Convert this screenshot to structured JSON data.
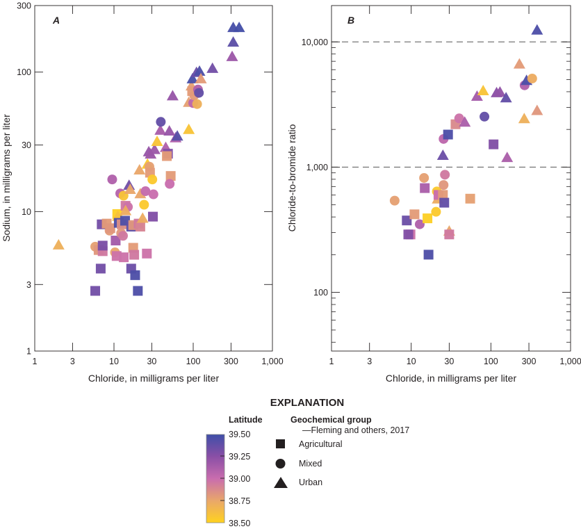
{
  "chart_data": [
    {
      "panel": "A",
      "type": "scatter",
      "title": "A",
      "xlabel": "Chloride, in milligrams per liter",
      "ylabel": "Sodium, in milligrams per liter",
      "xscale": "log",
      "yscale": "log",
      "xlim": [
        1,
        1000
      ],
      "ylim": [
        1,
        300
      ],
      "xticks": [
        1,
        3,
        10,
        30,
        100,
        300,
        1000
      ],
      "xtick_labels": [
        "1",
        "3",
        "10",
        "30",
        "100",
        "300",
        "1,000"
      ],
      "yticks": [
        1,
        3,
        10,
        30,
        100,
        300
      ],
      "ytick_labels": [
        "1",
        "3",
        "10",
        "30",
        "100",
        "300"
      ],
      "grid": false,
      "points": [
        {
          "x": 2.0,
          "y": 5.8,
          "group": "Urban",
          "lat": 38.7
        },
        {
          "x": 5.8,
          "y": 5.6,
          "group": "Mixed",
          "lat": 38.78
        },
        {
          "x": 6.4,
          "y": 5.3,
          "group": "Agricultural",
          "lat": 38.82
        },
        {
          "x": 7.2,
          "y": 5.2,
          "group": "Agricultural",
          "lat": 38.95
        },
        {
          "x": 7.2,
          "y": 5.7,
          "group": "Agricultural",
          "lat": 39.3
        },
        {
          "x": 6.8,
          "y": 3.9,
          "group": "Agricultural",
          "lat": 39.33
        },
        {
          "x": 5.8,
          "y": 2.7,
          "group": "Agricultural",
          "lat": 39.33
        },
        {
          "x": 7.0,
          "y": 8.1,
          "group": "Agricultural",
          "lat": 39.32
        },
        {
          "x": 8.1,
          "y": 8.2,
          "group": "Agricultural",
          "lat": 38.8
        },
        {
          "x": 8.8,
          "y": 7.3,
          "group": "Mixed",
          "lat": 38.8
        },
        {
          "x": 9.0,
          "y": 7.6,
          "group": "Agricultural",
          "lat": 38.82
        },
        {
          "x": 10.3,
          "y": 5.1,
          "group": "Mixed",
          "lat": 38.76
        },
        {
          "x": 10.5,
          "y": 6.2,
          "group": "Agricultural",
          "lat": 39.15
        },
        {
          "x": 10.8,
          "y": 4.8,
          "group": "Agricultural",
          "lat": 38.98
        },
        {
          "x": 11.0,
          "y": 9.6,
          "group": "Agricultural",
          "lat": 38.52
        },
        {
          "x": 11.2,
          "y": 9.3,
          "group": "Urban",
          "lat": 38.6
        },
        {
          "x": 11.5,
          "y": 8.3,
          "group": "Agricultural",
          "lat": 39.45
        },
        {
          "x": 12.5,
          "y": 8.1,
          "group": "Agricultural",
          "lat": 38.85
        },
        {
          "x": 12.3,
          "y": 7.0,
          "group": "Mixed",
          "lat": 38.82
        },
        {
          "x": 13.0,
          "y": 6.7,
          "group": "Mixed",
          "lat": 38.95
        },
        {
          "x": 13.3,
          "y": 4.7,
          "group": "Agricultural",
          "lat": 38.98
        },
        {
          "x": 13.8,
          "y": 8.6,
          "group": "Agricultural",
          "lat": 39.45
        },
        {
          "x": 14.0,
          "y": 11.0,
          "group": "Agricultural",
          "lat": 38.95
        },
        {
          "x": 15.0,
          "y": 10.8,
          "group": "Mixed",
          "lat": 38.98
        },
        {
          "x": 14.0,
          "y": 10.2,
          "group": "Urban",
          "lat": 38.72
        },
        {
          "x": 12.0,
          "y": 13.5,
          "group": "Mixed",
          "lat": 39.08
        },
        {
          "x": 13.2,
          "y": 13.0,
          "group": "Mixed",
          "lat": 38.58
        },
        {
          "x": 9.5,
          "y": 17.0,
          "group": "Mixed",
          "lat": 39.1
        },
        {
          "x": 15.5,
          "y": 15.5,
          "group": "Urban",
          "lat": 39.33
        },
        {
          "x": 16.0,
          "y": 14.5,
          "group": "Urban",
          "lat": 38.75
        },
        {
          "x": 16.5,
          "y": 7.8,
          "group": "Agricultural",
          "lat": 39.4
        },
        {
          "x": 17.5,
          "y": 8.0,
          "group": "Agricultural",
          "lat": 38.82
        },
        {
          "x": 17.5,
          "y": 5.5,
          "group": "Agricultural",
          "lat": 38.8
        },
        {
          "x": 18.0,
          "y": 4.9,
          "group": "Agricultural",
          "lat": 38.95
        },
        {
          "x": 16.5,
          "y": 3.9,
          "group": "Agricultural",
          "lat": 39.35
        },
        {
          "x": 18.5,
          "y": 3.5,
          "group": "Agricultural",
          "lat": 39.45
        },
        {
          "x": 20.0,
          "y": 2.7,
          "group": "Agricultural",
          "lat": 39.45
        },
        {
          "x": 20.5,
          "y": 8.2,
          "group": "Agricultural",
          "lat": 38.95
        },
        {
          "x": 21.5,
          "y": 7.8,
          "group": "Agricultural",
          "lat": 38.9
        },
        {
          "x": 21.5,
          "y": 13.5,
          "group": "Urban",
          "lat": 38.75
        },
        {
          "x": 23.0,
          "y": 9.0,
          "group": "Urban",
          "lat": 38.72
        },
        {
          "x": 24.0,
          "y": 11.2,
          "group": "Mixed",
          "lat": 38.55
        },
        {
          "x": 25.0,
          "y": 14.0,
          "group": "Mixed",
          "lat": 39.02
        },
        {
          "x": 26.0,
          "y": 5.0,
          "group": "Agricultural",
          "lat": 38.98
        },
        {
          "x": 21.0,
          "y": 20.0,
          "group": "Urban",
          "lat": 38.75
        },
        {
          "x": 26.5,
          "y": 22.0,
          "group": "Urban",
          "lat": 38.55
        },
        {
          "x": 28.0,
          "y": 21.0,
          "group": "Mixed",
          "lat": 38.78
        },
        {
          "x": 28.5,
          "y": 19.0,
          "group": "Agricultural",
          "lat": 38.8
        },
        {
          "x": 30.5,
          "y": 17.0,
          "group": "Mixed",
          "lat": 38.55
        },
        {
          "x": 31.5,
          "y": 13.3,
          "group": "Mixed",
          "lat": 39.0
        },
        {
          "x": 31.0,
          "y": 9.2,
          "group": "Agricultural",
          "lat": 39.28
        },
        {
          "x": 27.5,
          "y": 27.0,
          "group": "Urban",
          "lat": 39.2
        },
        {
          "x": 29.0,
          "y": 26.0,
          "group": "Urban",
          "lat": 39.18
        },
        {
          "x": 32.5,
          "y": 28.0,
          "group": "Urban",
          "lat": 39.18
        },
        {
          "x": 35.0,
          "y": 32.0,
          "group": "Urban",
          "lat": 38.58
        },
        {
          "x": 38.5,
          "y": 38.5,
          "group": "Urban",
          "lat": 39.13
        },
        {
          "x": 39.0,
          "y": 44.0,
          "group": "Mixed",
          "lat": 39.38
        },
        {
          "x": 45.0,
          "y": 29.0,
          "group": "Urban",
          "lat": 39.1
        },
        {
          "x": 48.0,
          "y": 26.0,
          "group": "Agricultural",
          "lat": 39.28
        },
        {
          "x": 46.5,
          "y": 25.0,
          "group": "Agricultural",
          "lat": 38.8
        },
        {
          "x": 50.0,
          "y": 38.0,
          "group": "Urban",
          "lat": 39.2
        },
        {
          "x": 52.0,
          "y": 18.0,
          "group": "Agricultural",
          "lat": 38.8
        },
        {
          "x": 50.5,
          "y": 15.8,
          "group": "Mixed",
          "lat": 39.0
        },
        {
          "x": 55.0,
          "y": 68.0,
          "group": "Urban",
          "lat": 39.2
        },
        {
          "x": 60.0,
          "y": 34.0,
          "group": "Urban",
          "lat": 39.1
        },
        {
          "x": 63.0,
          "y": 35.0,
          "group": "Urban",
          "lat": 39.42
        },
        {
          "x": 88.0,
          "y": 39.0,
          "group": "Urban",
          "lat": 38.58
        },
        {
          "x": 88.0,
          "y": 61.0,
          "group": "Urban",
          "lat": 38.78
        },
        {
          "x": 95.0,
          "y": 80.0,
          "group": "Urban",
          "lat": 38.78
        },
        {
          "x": 97.0,
          "y": 73.0,
          "group": "Agricultural",
          "lat": 38.8
        },
        {
          "x": 100.0,
          "y": 60.0,
          "group": "Mixed",
          "lat": 39.05
        },
        {
          "x": 103.0,
          "y": 68.0,
          "group": "Mixed",
          "lat": 38.8
        },
        {
          "x": 112.0,
          "y": 59.0,
          "group": "Mixed",
          "lat": 38.7
        },
        {
          "x": 115.0,
          "y": 75.0,
          "group": "Mixed",
          "lat": 39.1
        },
        {
          "x": 118.0,
          "y": 71.0,
          "group": "Mixed",
          "lat": 39.38
        },
        {
          "x": 98.0,
          "y": 90.0,
          "group": "Urban",
          "lat": 39.47
        },
        {
          "x": 110.0,
          "y": 100.0,
          "group": "Urban",
          "lat": 39.35
        },
        {
          "x": 120.0,
          "y": 102.0,
          "group": "Urban",
          "lat": 39.45
        },
        {
          "x": 125.0,
          "y": 90.0,
          "group": "Urban",
          "lat": 38.8
        },
        {
          "x": 175.0,
          "y": 107.0,
          "group": "Urban",
          "lat": 39.33
        },
        {
          "x": 310.0,
          "y": 130.0,
          "group": "Urban",
          "lat": 39.18
        },
        {
          "x": 320.0,
          "y": 165.0,
          "group": "Urban",
          "lat": 39.4
        },
        {
          "x": 320.0,
          "y": 210.0,
          "group": "Urban",
          "lat": 39.47
        },
        {
          "x": 380.0,
          "y": 210.0,
          "group": "Urban",
          "lat": 39.48
        }
      ]
    },
    {
      "panel": "B",
      "type": "scatter",
      "title": "B",
      "xlabel": "Chloride, in milligrams per liter",
      "ylabel": "Chloride-to-bromide ratio",
      "xscale": "log",
      "yscale": "log",
      "xlim": [
        1,
        1000
      ],
      "ylim": [
        34,
        19500
      ],
      "xticks": [
        1,
        3,
        10,
        30,
        100,
        300,
        1000
      ],
      "xtick_labels": [
        "1",
        "3",
        "10",
        "30",
        "100",
        "300",
        "1,000"
      ],
      "yticks": [
        100,
        1000,
        10000
      ],
      "ytick_labels": [
        "100",
        "1,000",
        "10,000"
      ],
      "reference_lines": [
        1000,
        10000
      ],
      "grid": false,
      "points": [
        {
          "x": 6.2,
          "y": 540,
          "group": "Mixed",
          "lat": 38.78
        },
        {
          "x": 8.8,
          "y": 375,
          "group": "Agricultural",
          "lat": 39.35
        },
        {
          "x": 9.8,
          "y": 290,
          "group": "Agricultural",
          "lat": 38.98
        },
        {
          "x": 9.2,
          "y": 290,
          "group": "Agricultural",
          "lat": 39.28
        },
        {
          "x": 11.0,
          "y": 420,
          "group": "Agricultural",
          "lat": 38.8
        },
        {
          "x": 12.8,
          "y": 350,
          "group": "Mixed",
          "lat": 39.1
        },
        {
          "x": 14.5,
          "y": 820,
          "group": "Mixed",
          "lat": 38.78
        },
        {
          "x": 14.8,
          "y": 680,
          "group": "Agricultural",
          "lat": 39.12
        },
        {
          "x": 16.0,
          "y": 390,
          "group": "Agricultural",
          "lat": 38.52
        },
        {
          "x": 16.5,
          "y": 200,
          "group": "Agricultural",
          "lat": 39.45
        },
        {
          "x": 20.5,
          "y": 440,
          "group": "Mixed",
          "lat": 38.55
        },
        {
          "x": 21.0,
          "y": 640,
          "group": "Mixed",
          "lat": 38.55
        },
        {
          "x": 21.5,
          "y": 560,
          "group": "Urban",
          "lat": 38.72
        },
        {
          "x": 22.0,
          "y": 600,
          "group": "Agricultural",
          "lat": 39.0
        },
        {
          "x": 25.0,
          "y": 600,
          "group": "Agricultural",
          "lat": 38.8
        },
        {
          "x": 25.5,
          "y": 720,
          "group": "Mixed",
          "lat": 38.82
        },
        {
          "x": 26.5,
          "y": 870,
          "group": "Mixed",
          "lat": 38.95
        },
        {
          "x": 26.0,
          "y": 520,
          "group": "Agricultural",
          "lat": 39.38
        },
        {
          "x": 30.0,
          "y": 310,
          "group": "Urban",
          "lat": 38.75
        },
        {
          "x": 30.0,
          "y": 290,
          "group": "Agricultural",
          "lat": 38.95
        },
        {
          "x": 55.0,
          "y": 560,
          "group": "Agricultural",
          "lat": 38.78
        },
        {
          "x": 25.0,
          "y": 1250,
          "group": "Urban",
          "lat": 39.35
        },
        {
          "x": 25.5,
          "y": 1680,
          "group": "Mixed",
          "lat": 39.05
        },
        {
          "x": 29.0,
          "y": 1820,
          "group": "Agricultural",
          "lat": 39.45
        },
        {
          "x": 36.0,
          "y": 2200,
          "group": "Agricultural",
          "lat": 38.88
        },
        {
          "x": 40.0,
          "y": 2450,
          "group": "Mixed",
          "lat": 38.98
        },
        {
          "x": 47.0,
          "y": 2300,
          "group": "Urban",
          "lat": 39.12
        },
        {
          "x": 83.0,
          "y": 2530,
          "group": "Mixed",
          "lat": 39.38
        },
        {
          "x": 108.0,
          "y": 1520,
          "group": "Agricultural",
          "lat": 39.28
        },
        {
          "x": 160.0,
          "y": 1200,
          "group": "Urban",
          "lat": 39.12
        },
        {
          "x": 67.0,
          "y": 3700,
          "group": "Urban",
          "lat": 39.15
        },
        {
          "x": 80.0,
          "y": 4100,
          "group": "Urban",
          "lat": 38.58
        },
        {
          "x": 118.0,
          "y": 3950,
          "group": "Urban",
          "lat": 39.25
        },
        {
          "x": 130.0,
          "y": 4000,
          "group": "Urban",
          "lat": 39.22
        },
        {
          "x": 155.0,
          "y": 3600,
          "group": "Urban",
          "lat": 39.38
        },
        {
          "x": 228.0,
          "y": 6700,
          "group": "Urban",
          "lat": 38.8
        },
        {
          "x": 265.0,
          "y": 4500,
          "group": "Mixed",
          "lat": 39.1
        },
        {
          "x": 280.0,
          "y": 4950,
          "group": "Urban",
          "lat": 39.45
        },
        {
          "x": 330.0,
          "y": 5100,
          "group": "Mixed",
          "lat": 38.72
        },
        {
          "x": 262.0,
          "y": 2450,
          "group": "Urban",
          "lat": 38.7
        },
        {
          "x": 380.0,
          "y": 2850,
          "group": "Urban",
          "lat": 38.82
        },
        {
          "x": 380.0,
          "y": 12500,
          "group": "Urban",
          "lat": 39.45
        }
      ]
    }
  ],
  "explanation": {
    "title": "EXPLANATION",
    "colorbar": {
      "title": "Latitude",
      "min": 38.5,
      "max": 39.5,
      "tick_labels": [
        "39.50",
        "39.25",
        "39.00",
        "38.75",
        "38.50"
      ],
      "colors": [
        "#3F4FA8",
        "#8A4FA6",
        "#C96DAE",
        "#E9A76A",
        "#FFD21F"
      ]
    },
    "groups": {
      "title": "Geochemical group",
      "subtitle": "—Fleming and others, 2017",
      "items": [
        {
          "label": "Agricultural",
          "marker": "square"
        },
        {
          "label": "Mixed",
          "marker": "circle"
        },
        {
          "label": "Urban",
          "marker": "triangle"
        }
      ]
    }
  }
}
